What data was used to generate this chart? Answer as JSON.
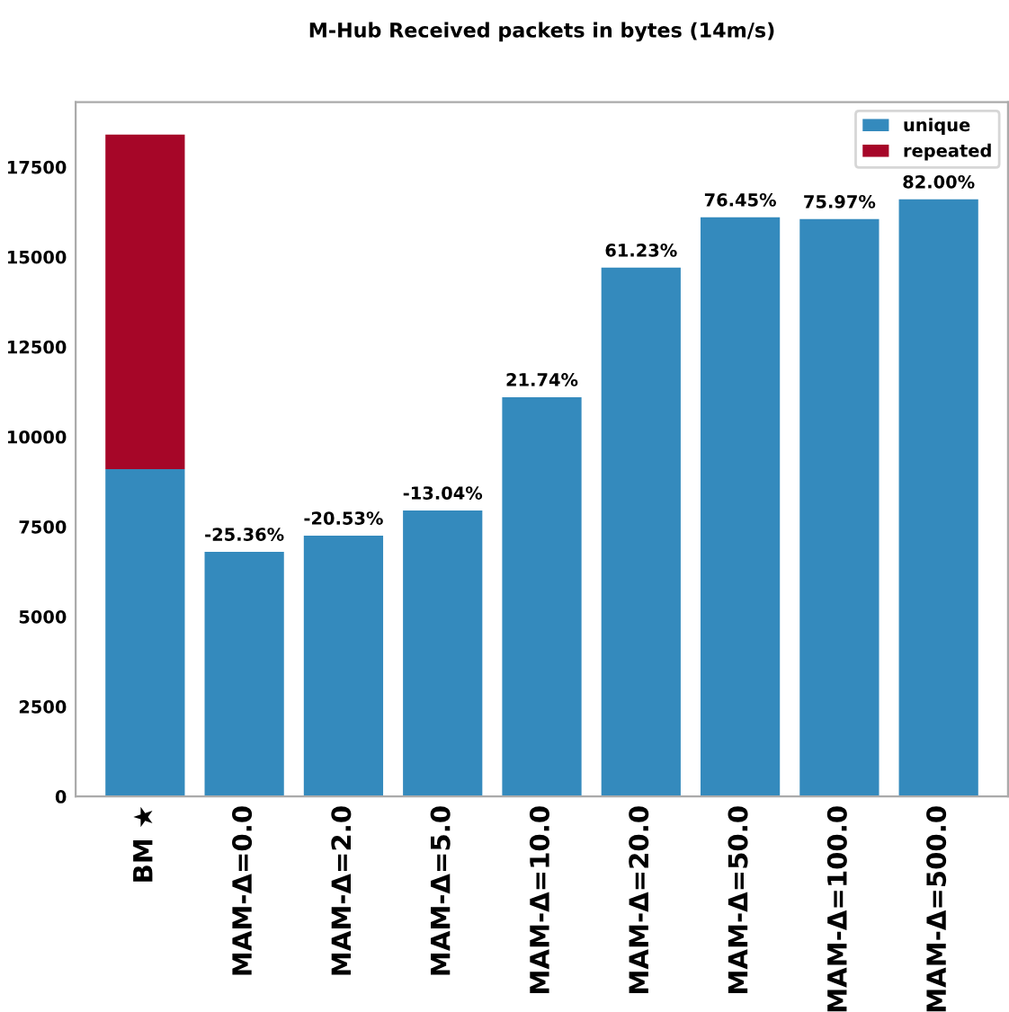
{
  "chart_data": {
    "type": "bar",
    "title": "M-Hub Received packets in bytes (14m/s)",
    "stacked": true,
    "legend": "top right",
    "grid": false,
    "categories": [
      "BM ★",
      "MAM-Δ=0.0",
      "MAM-Δ=2.0",
      "MAM-Δ=5.0",
      "MAM-Δ=10.0",
      "MAM-Δ=20.0",
      "MAM-Δ=50.0",
      "MAM-Δ=100.0",
      "MAM-Δ=500.0"
    ],
    "ylim": [
      0,
      19300
    ],
    "yticks": [
      0,
      2500,
      5000,
      7500,
      10000,
      12500,
      15000,
      17500
    ],
    "annotations": [
      {
        "text": "-25.36%",
        "x": "MAM-Δ=0.0",
        "y": 6800
      },
      {
        "text": "-20.53%",
        "x": "MAM-Δ=2.0",
        "y": 7250
      },
      {
        "text": "-13.04%",
        "x": "MAM-Δ=5.0",
        "y": 7950
      },
      {
        "text": "21.74%",
        "x": "MAM-Δ=10.0",
        "y": 11100
      },
      {
        "text": "61.23%",
        "x": "MAM-Δ=20.0",
        "y": 14700
      },
      {
        "text": "76.45%",
        "x": "MAM-Δ=50.0",
        "y": 16100
      },
      {
        "text": "75.97%",
        "x": "MAM-Δ=100.0",
        "y": 16050
      },
      {
        "text": "82.00%",
        "x": "MAM-Δ=500.0",
        "y": 16600
      }
    ],
    "series": [
      {
        "name": "unique",
        "color": "#348abd",
        "values": [
          9100,
          6800,
          7250,
          7950,
          11100,
          14700,
          16100,
          16050,
          16600
        ]
      },
      {
        "name": "repeated",
        "color": "#a60628",
        "values": [
          9300,
          null,
          null,
          null,
          null,
          null,
          null,
          null,
          null
        ]
      }
    ]
  }
}
